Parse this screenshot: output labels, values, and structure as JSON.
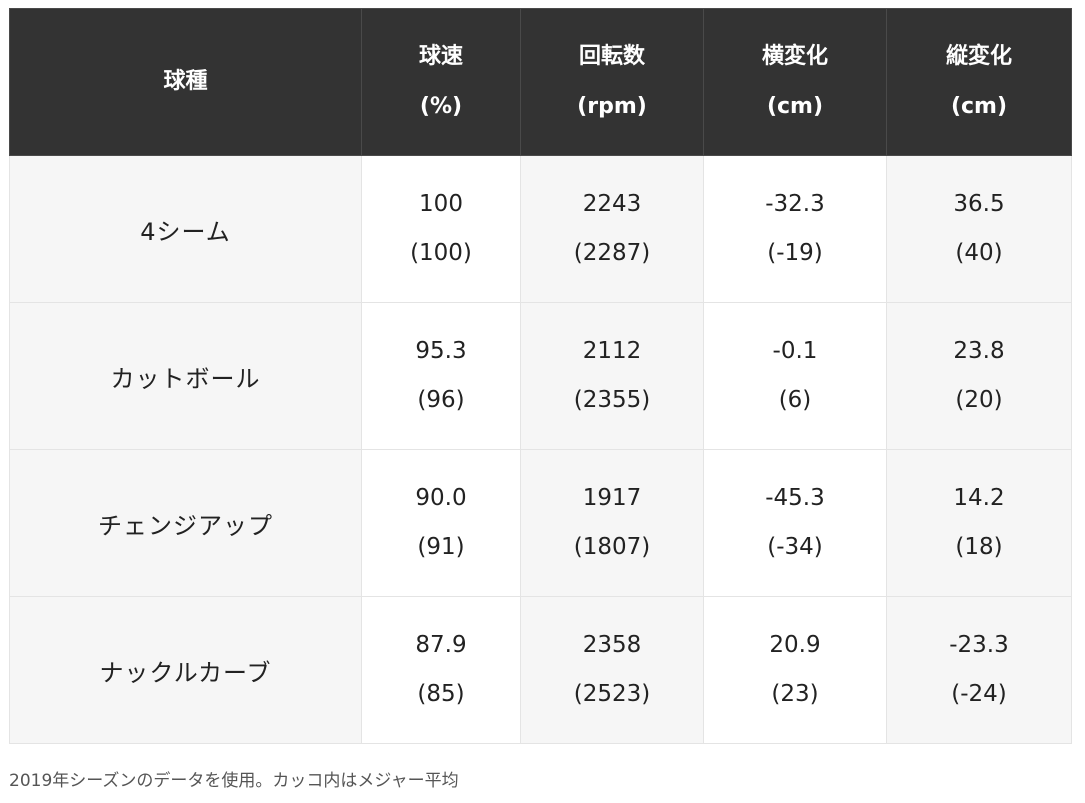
{
  "table": {
    "headers": [
      {
        "line1": "球種",
        "line2": ""
      },
      {
        "line1": "球速",
        "line2": "(%)"
      },
      {
        "line1": "回転数",
        "line2": "(rpm)"
      },
      {
        "line1": "横変化",
        "line2": "(cm)"
      },
      {
        "line1": "縦変化",
        "line2": "(cm)"
      }
    ],
    "rows": [
      {
        "pitch": "4シーム",
        "cells": [
          {
            "value": "100",
            "mlb": "(100)"
          },
          {
            "value": "2243",
            "mlb": "(2287)"
          },
          {
            "value": "-32.3",
            "mlb": "(-19)"
          },
          {
            "value": "36.5",
            "mlb": "(40)"
          }
        ]
      },
      {
        "pitch": "カットボール",
        "cells": [
          {
            "value": "95.3",
            "mlb": "(96)"
          },
          {
            "value": "2112",
            "mlb": "(2355)"
          },
          {
            "value": "-0.1",
            "mlb": "(6)"
          },
          {
            "value": "23.8",
            "mlb": "(20)"
          }
        ]
      },
      {
        "pitch": "チェンジアップ",
        "cells": [
          {
            "value": "90.0",
            "mlb": "(91)"
          },
          {
            "value": "1917",
            "mlb": "(1807)"
          },
          {
            "value": "-45.3",
            "mlb": "(-34)"
          },
          {
            "value": "14.2",
            "mlb": "(18)"
          }
        ]
      },
      {
        "pitch": "ナックルカーブ",
        "cells": [
          {
            "value": "87.9",
            "mlb": "(85)"
          },
          {
            "value": "2358",
            "mlb": "(2523)"
          },
          {
            "value": "20.9",
            "mlb": "(23)"
          },
          {
            "value": "-23.3",
            "mlb": "(-24)"
          }
        ]
      }
    ]
  },
  "caption": "2019年シーズンのデータを使用。カッコ内はメジャー平均",
  "colors": {
    "header_bg": "#333333",
    "header_text": "#ffffff",
    "name_cell_bg": "#f6f6f6",
    "value_cell_bg": "#ffffff",
    "border": "#e4e4e4"
  }
}
